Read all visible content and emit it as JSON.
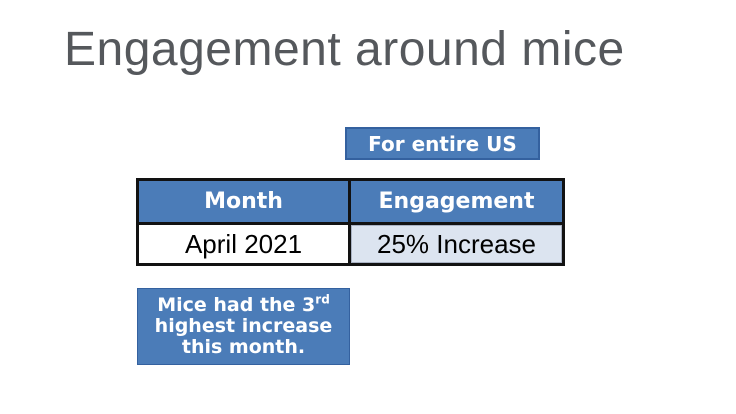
{
  "title": {
    "text": "Engagement around mice"
  },
  "badge": {
    "label": "For entire US"
  },
  "table": {
    "columns": [
      "Month",
      "Engagement"
    ],
    "rows": [
      [
        "April 2021",
        "25% Increase"
      ]
    ]
  },
  "callout": {
    "line1_prefix": "Mice had the 3",
    "superscript": "rd",
    "line2": "highest increase",
    "line3": "this month."
  },
  "colors": {
    "page_bg": "#ffffff",
    "title_gray": "#55585c",
    "accent_blue": "#4b7cb8",
    "accent_blue_dark": "#34619f",
    "light_cell": "#dce4f0",
    "table_border": "#121212"
  },
  "chart_data": {
    "type": "table",
    "title": "Engagement around mice",
    "scope_label": "For entire US",
    "columns": [
      "Month",
      "Engagement"
    ],
    "rows": [
      [
        "April 2021",
        "25% Increase"
      ]
    ],
    "annotations": [
      "Mice had the 3rd highest increase this month."
    ]
  }
}
